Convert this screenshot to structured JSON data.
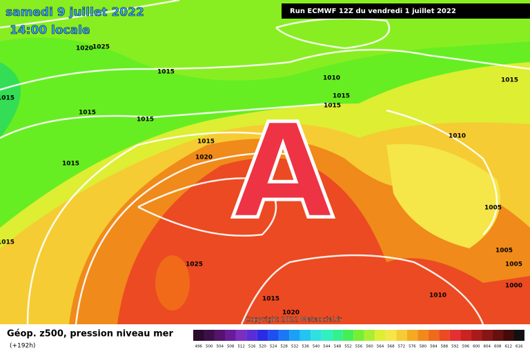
{
  "header": {
    "date": "samedi 9 juillet 2022",
    "time": "14:00 locale",
    "run": "Run ECMWF 12Z du vendredi 1 juillet 2022"
  },
  "map": {
    "high_label": "A",
    "isobar_labels": [
      1020,
      1025,
      1015,
      1015,
      1015,
      1015,
      1010,
      1015,
      1015,
      1015,
      1010,
      1015,
      1020,
      1015,
      1005,
      1015,
      1025,
      1005,
      1005,
      1000,
      1010,
      1015,
      1020
    ],
    "copyright": "Copyright 2022 Meteociel.fr"
  },
  "footer": {
    "title": "Géop. z500, pression niveau mer",
    "lead": "(+192h)"
  },
  "colorbar": {
    "ticks": [
      496,
      500,
      504,
      508,
      512,
      516,
      520,
      524,
      528,
      532,
      536,
      540,
      544,
      548,
      552,
      556,
      560,
      564,
      568,
      572,
      576,
      580,
      584,
      588,
      592,
      596,
      600,
      604,
      608,
      612,
      616
    ],
    "colors": [
      "#2b0a2b",
      "#3d0f4a",
      "#55126e",
      "#6a1b9a",
      "#7b2fbf",
      "#5a2dd6",
      "#2b2be6",
      "#1e4ff0",
      "#1a78f5",
      "#1aa0f5",
      "#22c4f0",
      "#2ee0e0",
      "#2ef0c0",
      "#33f090",
      "#44ee55",
      "#77ee33",
      "#aaee33",
      "#ddee33",
      "#f5e64a",
      "#f5cc33",
      "#f5aa22",
      "#f08a1a",
      "#f06a1a",
      "#ec4a22",
      "#e43030",
      "#cc2222",
      "#aa1a1a",
      "#881414",
      "#661010",
      "#440a0a",
      "#111111"
    ]
  }
}
